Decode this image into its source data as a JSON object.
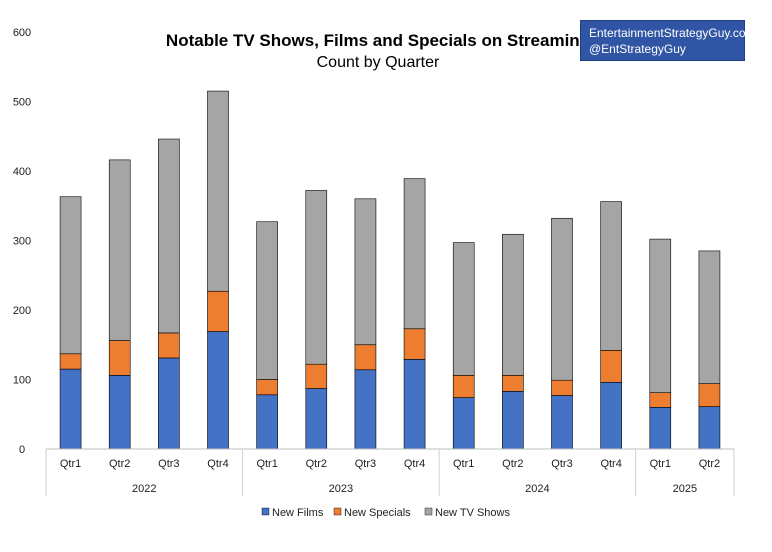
{
  "chart_data": {
    "type": "bar",
    "stacked": true,
    "title": "Notable TV Shows, Films and Specials on Streaming",
    "subtitle": "Count by Quarter",
    "ylim": [
      0,
      600
    ],
    "yticks": [
      0,
      100,
      200,
      300,
      400,
      500,
      600
    ],
    "groups": [
      {
        "label": "2022",
        "categories": [
          "Qtr1",
          "Qtr2",
          "Qtr3",
          "Qtr4"
        ]
      },
      {
        "label": "2023",
        "categories": [
          "Qtr1",
          "Qtr2",
          "Qtr3",
          "Qtr4"
        ]
      },
      {
        "label": "2024",
        "categories": [
          "Qtr1",
          "Qtr2",
          "Qtr3",
          "Qtr4"
        ]
      },
      {
        "label": "2025",
        "categories": [
          "Qtr1",
          "Qtr2"
        ]
      }
    ],
    "series": [
      {
        "name": "New Films",
        "color": "#4472c4",
        "values": [
          115,
          106,
          131,
          169,
          78,
          87,
          114,
          129,
          74,
          83,
          77,
          96,
          60,
          61
        ]
      },
      {
        "name": "New Specials",
        "color": "#ed7d31",
        "values": [
          22,
          50,
          36,
          58,
          22,
          35,
          36,
          44,
          32,
          23,
          22,
          46,
          21,
          33
        ]
      },
      {
        "name": "New TV Shows",
        "color": "#a5a5a5",
        "values": [
          226,
          260,
          279,
          288,
          227,
          250,
          210,
          216,
          191,
          203,
          233,
          214,
          221,
          191
        ]
      }
    ]
  },
  "credit": {
    "line1": "EntertainmentStrategyGuy.com",
    "line2": "@EntStrategyGuy"
  }
}
